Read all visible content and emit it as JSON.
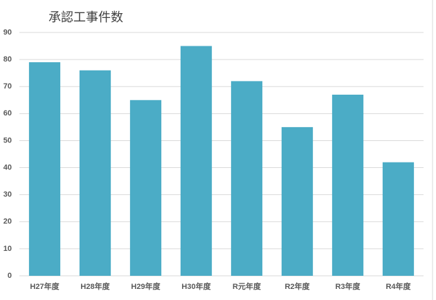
{
  "chart_data": {
    "type": "bar",
    "title": "承認工事件数",
    "categories": [
      "H27年度",
      "H28年度",
      "H29年度",
      "H30年度",
      "R元年度",
      "R2年度",
      "R3年度",
      "R4年度"
    ],
    "values": [
      79,
      76,
      65,
      85,
      72,
      55,
      67,
      42
    ],
    "color": "#4bacc6",
    "ylim": [
      0,
      90
    ],
    "yticks": [
      0,
      10,
      20,
      30,
      40,
      50,
      60,
      70,
      80,
      90
    ],
    "grid": true
  }
}
